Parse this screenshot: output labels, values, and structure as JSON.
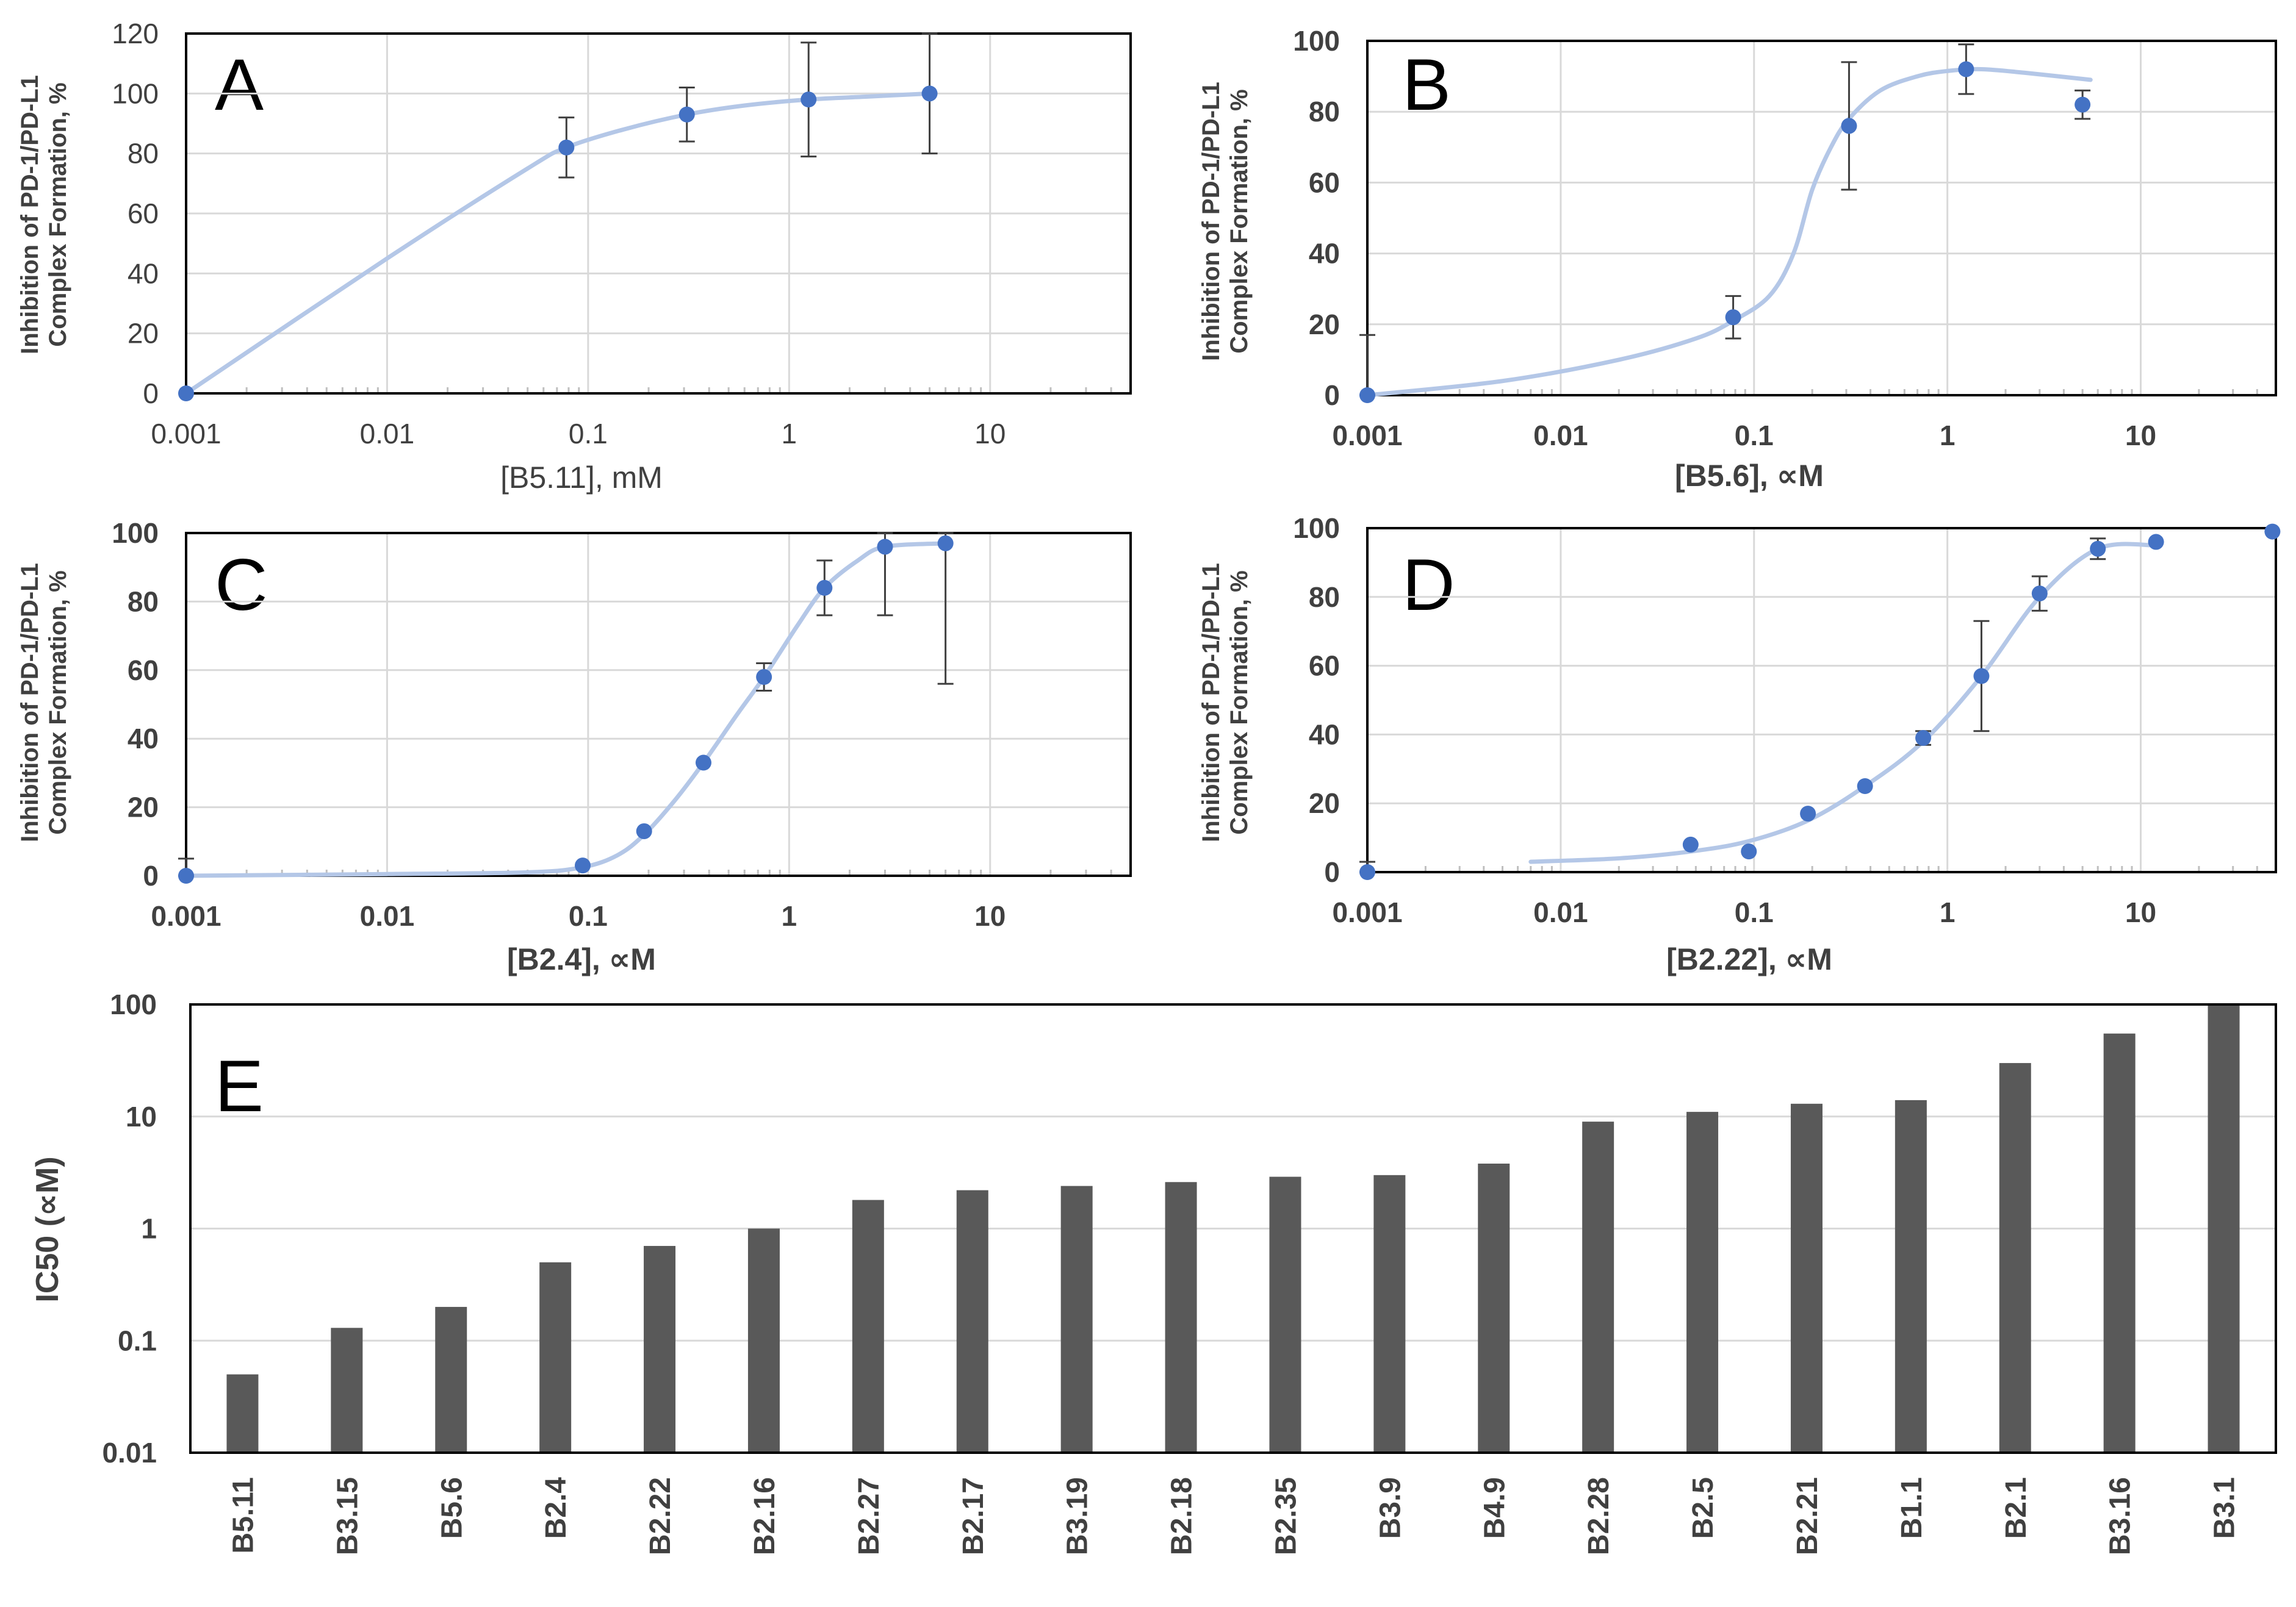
{
  "chart_data": [
    {
      "panel": "A",
      "type": "scatter",
      "x_scale": "log",
      "xlim": [
        0.001,
        50
      ],
      "ylim": [
        0,
        120
      ],
      "xticks": [
        0.001,
        0.01,
        0.1,
        1,
        10
      ],
      "xtick_labels": [
        "0.001",
        "0.01",
        "0.1",
        "1",
        "10"
      ],
      "yticks": [
        0,
        20,
        40,
        60,
        80,
        100,
        120
      ],
      "ytick_labels": [
        "0",
        "20",
        "40",
        "60",
        "80",
        "100",
        "120"
      ],
      "xlabel": "[B5.11], mM",
      "ylabel_line1": "Inhibition of PD-1/PD-L1",
      "ylabel_line2": "Complex Formation, %",
      "series": [
        {
          "name": "data",
          "x": [
            0.001,
            0.078,
            0.31,
            1.25,
            5.0
          ],
          "y": [
            0,
            82,
            93,
            98,
            100
          ],
          "err": [
            0,
            10,
            9,
            19,
            20
          ]
        }
      ],
      "fit": {
        "x": [
          0.001,
          0.01,
          0.05,
          0.078,
          0.15,
          0.31,
          0.6,
          1.25,
          2.5,
          5.0
        ],
        "y": [
          0,
          45,
          75,
          82,
          88,
          93,
          96,
          98,
          99,
          100
        ]
      }
    },
    {
      "panel": "B",
      "type": "scatter",
      "x_scale": "log",
      "xlim": [
        0.001,
        50
      ],
      "ylim": [
        0,
        100
      ],
      "xticks": [
        0.001,
        0.01,
        0.1,
        1,
        10
      ],
      "xtick_labels": [
        "0.001",
        "0.01",
        "0.1",
        "1",
        "10"
      ],
      "yticks": [
        0,
        20,
        40,
        60,
        80,
        100
      ],
      "ytick_labels": [
        "0",
        "20",
        "40",
        "60",
        "80",
        "100"
      ],
      "xlabel": "[B5.6], ∝M",
      "ylabel_line1": "Inhibition of PD-1/PD-L1",
      "ylabel_line2": "Complex Formation, %",
      "series": [
        {
          "name": "data",
          "x": [
            0.001,
            0.078,
            0.31,
            1.25,
            5.0
          ],
          "y": [
            0,
            22,
            76,
            92,
            82
          ],
          "err": [
            17,
            6,
            18,
            7,
            4
          ]
        }
      ],
      "fit": {
        "x": [
          0.001,
          0.005,
          0.02,
          0.05,
          0.078,
          0.12,
          0.16,
          0.2,
          0.25,
          0.31,
          0.45,
          0.7,
          1.0,
          1.5,
          2.5,
          5.5
        ],
        "y": [
          0,
          4,
          10,
          16,
          21,
          28,
          40,
          58,
          70,
          78,
          86,
          90,
          91.5,
          92,
          91,
          89
        ]
      }
    },
    {
      "panel": "C",
      "type": "scatter",
      "x_scale": "log",
      "xlim": [
        0.001,
        50
      ],
      "ylim": [
        0,
        100
      ],
      "xticks": [
        0.001,
        0.01,
        0.1,
        1,
        10
      ],
      "xtick_labels": [
        "0.001",
        "0.01",
        "0.1",
        "1",
        "10"
      ],
      "yticks": [
        0,
        20,
        40,
        60,
        80,
        100
      ],
      "ytick_labels": [
        "0",
        "20",
        "40",
        "60",
        "80",
        "100"
      ],
      "xlabel": "[B2.4], ∝M",
      "ylabel_line1": "Inhibition of PD-1/PD-L1",
      "ylabel_line2": "Complex Formation, %",
      "series": [
        {
          "name": "data",
          "x": [
            0.001,
            0.094,
            0.19,
            0.375,
            0.75,
            1.5,
            3.0,
            6.0
          ],
          "y": [
            0,
            3,
            13,
            33,
            58,
            84,
            96,
            97
          ],
          "err": [
            5,
            0,
            0,
            0,
            4,
            8,
            20,
            41
          ]
        }
      ],
      "fit": {
        "x": [
          0.001,
          0.01,
          0.05,
          0.094,
          0.14,
          0.19,
          0.27,
          0.375,
          0.55,
          0.75,
          1.1,
          1.5,
          2.2,
          3.0,
          6.0
        ],
        "y": [
          0,
          0.5,
          1,
          2.5,
          6,
          12,
          22,
          33,
          47,
          58,
          73,
          84,
          92,
          96,
          97
        ]
      }
    },
    {
      "panel": "D",
      "type": "scatter",
      "x_scale": "log",
      "xlim": [
        0.001,
        50
      ],
      "ylim": [
        0,
        100
      ],
      "xticks": [
        0.001,
        0.01,
        0.1,
        1,
        10
      ],
      "xtick_labels": [
        "0.001",
        "0.01",
        "0.1",
        "1",
        "10"
      ],
      "yticks": [
        0,
        20,
        40,
        60,
        80,
        100
      ],
      "ytick_labels": [
        "0",
        "20",
        "40",
        "60",
        "80",
        "100"
      ],
      "xlabel": "[B2.22], ∝M",
      "ylabel_line1": "Inhibition of PD-1/PD-L1",
      "ylabel_line2": "Complex Formation, %",
      "series": [
        {
          "name": "data",
          "x": [
            0.001,
            0.047,
            0.094,
            0.19,
            0.375,
            0.75,
            1.5,
            3.0,
            6.0,
            12.0,
            48.0
          ],
          "y": [
            0,
            8,
            6,
            17,
            25,
            39,
            57,
            81,
            94,
            96,
            99
          ],
          "err": [
            3,
            0,
            0,
            0,
            0,
            2,
            16,
            5,
            3,
            0,
            0
          ]
        }
      ],
      "fit": {
        "x": [
          0.007,
          0.02,
          0.047,
          0.094,
          0.19,
          0.375,
          0.75,
          1.5,
          3.0,
          6.0,
          12.0
        ],
        "y": [
          3,
          4,
          6,
          9,
          15,
          25,
          38,
          57,
          80,
          94,
          95
        ]
      }
    },
    {
      "panel": "E",
      "type": "bar",
      "y_scale": "log",
      "ylim": [
        0.01,
        100
      ],
      "yticks": [
        0.01,
        0.1,
        1,
        10,
        100
      ],
      "ytick_labels": [
        "0.01",
        "0.1",
        "1",
        "10",
        "100"
      ],
      "ylabel": "IC50 (∝M)",
      "categories": [
        "B5.11",
        "B3.15",
        "B5.6",
        "B2.4",
        "B2.22",
        "B2.16",
        "B2.27",
        "B2.17",
        "B3.19",
        "B2.18",
        "B2.35",
        "B3.9",
        "B4.9",
        "B2.28",
        "B2.5",
        "B2.21",
        "B1.1",
        "B2.1",
        "B3.16",
        "B3.1"
      ],
      "values": [
        0.05,
        0.13,
        0.2,
        0.5,
        0.7,
        1.0,
        1.8,
        2.2,
        2.4,
        2.6,
        2.9,
        3.0,
        3.8,
        9.0,
        11,
        13,
        14,
        30,
        55,
        100
      ]
    }
  ],
  "colors": {
    "marker": "#4472c4",
    "fit": "#b4c7e7",
    "bar": "#595959",
    "grid": "#d9d9d9",
    "frame": "#000000",
    "errbar": "#404040"
  }
}
